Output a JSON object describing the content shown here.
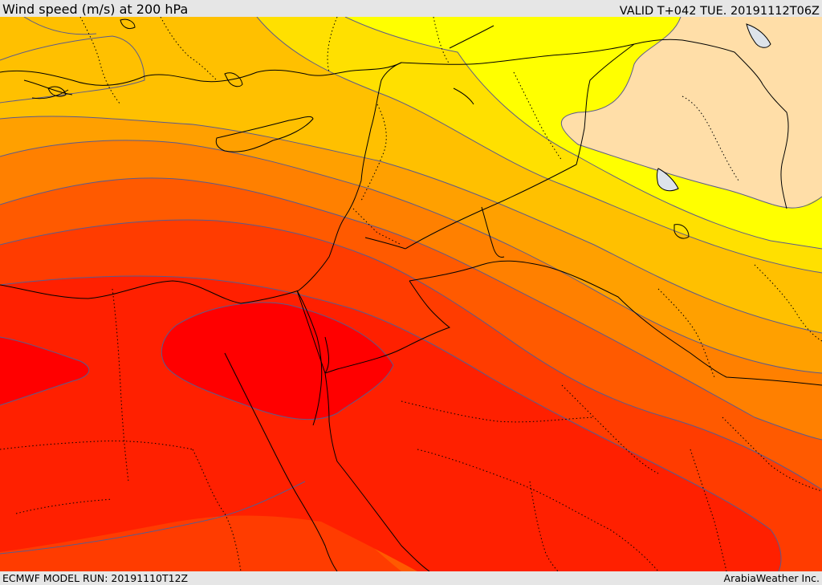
{
  "header": {
    "title": "Wind speed (m/s) at 200 hPa",
    "valid_time": "VALID T+042 TUE. 20191112T06Z"
  },
  "footer": {
    "model_run": "ECMWF MODEL RUN: 20191110T12Z",
    "credit": "ArabiaWeather Inc."
  },
  "map": {
    "field": "wind speed 200 hPa",
    "colors": {
      "lightest": "#ffdea8",
      "yellow": "#ffff00",
      "gold": "#ffe000",
      "amber": "#ffc000",
      "orange": "#ffa000",
      "dark_orange": "#ff8000",
      "red_orange": "#ff5a00",
      "orange_red": "#ff3c00",
      "red": "#ff2000",
      "core_red": "#ff0000",
      "contour": "#5b5b8c",
      "border": "#000000",
      "lake": "#dde3ea"
    }
  }
}
